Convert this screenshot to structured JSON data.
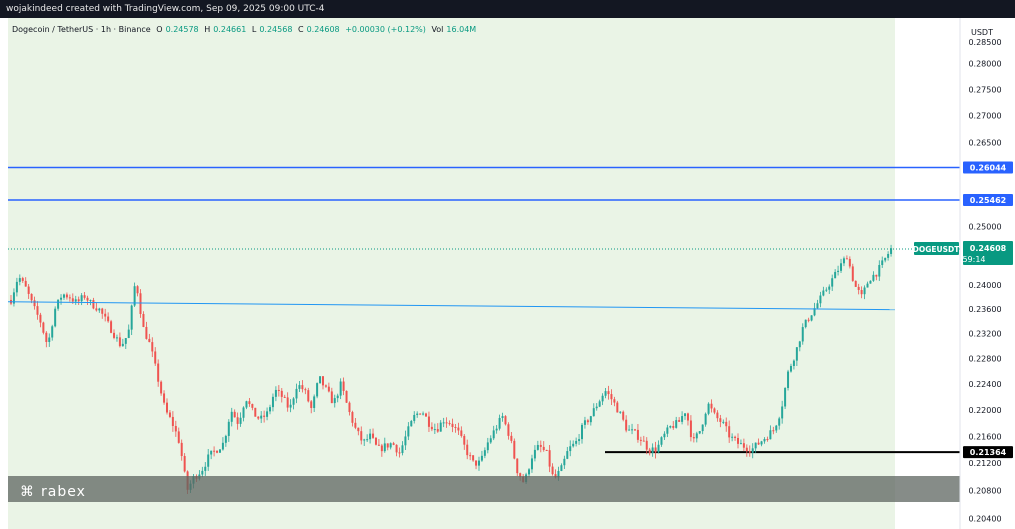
{
  "top_bar": {
    "text": "wojakindeed created with TradingView.com, Sep 09, 2025 09:00 UTC-4"
  },
  "header": {
    "symbol": "Dogecoin / TetherUS · 1h · Binance",
    "open_label": "O",
    "open": "0.24578",
    "high_label": "H",
    "high": "0.24661",
    "low_label": "L",
    "low": "0.24568",
    "close_label": "C",
    "close": "0.24608",
    "change": "+0.00030 (+0.12%)",
    "volume_label": "Vol",
    "volume": "16.04M"
  },
  "axis": {
    "currency": "USDT",
    "ticks": [
      "0.28000",
      "0.27500",
      "0.27000",
      "0.26500",
      "0.25000",
      "0.24000",
      "0.23600",
      "0.23200",
      "0.22800",
      "0.22400",
      "0.22000",
      "0.21600",
      "0.21200",
      "0.20800",
      "0.20400"
    ],
    "clipped_top_tick": "0.28500"
  },
  "price_tag": {
    "symbol": "DOGEUSDT",
    "price": "0.24608",
    "countdown": "59:14"
  },
  "levels": [
    {
      "label": "0.26044",
      "value": 0.26044,
      "color": "#2962ff"
    },
    {
      "label": "0.25462",
      "value": 0.25462,
      "color": "#2962ff"
    },
    {
      "label": "0.21364",
      "value": 0.21364,
      "color": "#000000"
    }
  ],
  "watermark": {
    "brand": "rabex"
  },
  "colors": {
    "up": "#26a69a",
    "down": "#ef5350",
    "background": "#eaf4e6",
    "trendline": "#2196f3",
    "last_price": "#089981"
  },
  "chart_data": {
    "type": "candlestick",
    "y_scale": "log",
    "y_range": [
      0.2025,
      0.289
    ],
    "trendline": {
      "start": 0.2372,
      "end": 0.2359
    },
    "last_price": 0.24608,
    "support_segment": {
      "value": 0.21364
    },
    "close_path": [
      0.2375,
      0.2415,
      0.2395,
      0.2365,
      0.234,
      0.23,
      0.236,
      0.2385,
      0.238,
      0.237,
      0.2382,
      0.2368,
      0.236,
      0.234,
      0.232,
      0.23,
      0.232,
      0.241,
      0.233,
      0.23,
      0.225,
      0.22,
      0.218,
      0.215,
      0.208,
      0.21,
      0.211,
      0.213,
      0.214,
      0.215,
      0.22,
      0.218,
      0.222,
      0.2195,
      0.2185,
      0.2195,
      0.223,
      0.222,
      0.22,
      0.224,
      0.223,
      0.22,
      0.225,
      0.223,
      0.221,
      0.224,
      0.22,
      0.217,
      0.215,
      0.216,
      0.214,
      0.2145,
      0.215,
      0.2135,
      0.2165,
      0.219,
      0.22,
      0.218,
      0.217,
      0.2185,
      0.218,
      0.2165,
      0.214,
      0.212,
      0.212,
      0.215,
      0.217,
      0.219,
      0.216,
      0.211,
      0.209,
      0.213,
      0.2145,
      0.2135,
      0.2095,
      0.211,
      0.214,
      0.215,
      0.2175,
      0.219,
      0.221,
      0.223,
      0.2215,
      0.2195,
      0.217,
      0.2165,
      0.2155,
      0.214,
      0.214,
      0.216,
      0.2175,
      0.218,
      0.22,
      0.215,
      0.217,
      0.221,
      0.219,
      0.218,
      0.216,
      0.215,
      0.2145,
      0.214,
      0.215,
      0.216,
      0.217,
      0.22,
      0.226,
      0.229,
      0.233,
      0.235,
      0.237,
      0.239,
      0.241,
      0.243,
      0.245,
      0.24,
      0.238,
      0.241,
      0.242,
      0.244,
      0.2461
    ]
  }
}
